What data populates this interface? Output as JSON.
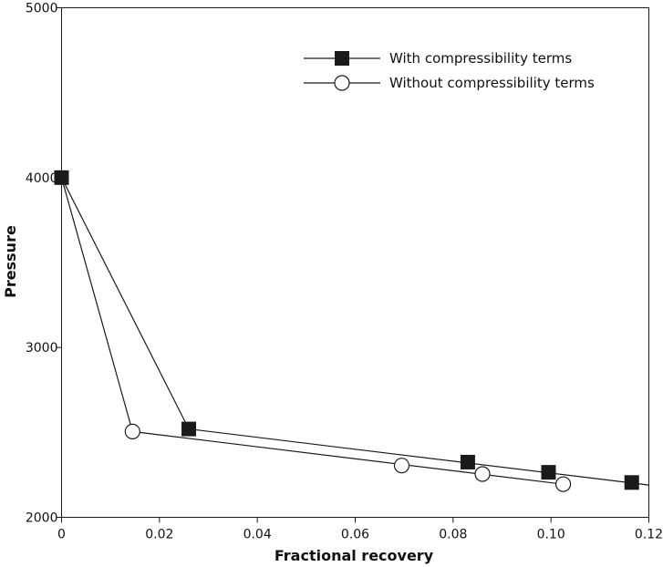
{
  "chart_data": {
    "type": "line",
    "title": "",
    "xlabel": "Fractional recovery",
    "ylabel": "Pressure",
    "xlim": [
      0,
      0.12
    ],
    "ylim": [
      2000,
      5000
    ],
    "xticks": [
      0,
      0.02,
      0.04,
      0.06,
      0.08,
      0.1,
      0.12
    ],
    "xtick_labels": [
      "0",
      "0.02",
      "0.04",
      "0.06",
      "0.08",
      "0.10",
      "0.12"
    ],
    "yticks": [
      2000,
      3000,
      4000,
      5000
    ],
    "ytick_labels": [
      "2000",
      "3000",
      "4000",
      "5000"
    ],
    "grid": false,
    "legend_position": "top-right",
    "series": [
      {
        "name": "With compressibility terms",
        "marker": "filled-square",
        "color": "#1a1a1a",
        "x": [
          0,
          0.026,
          0.083,
          0.0995,
          0.1165
        ],
        "y": [
          4000,
          2520,
          2325,
          2265,
          2205
        ],
        "line_x": [
          0,
          0.026,
          0.12
        ],
        "line_y": [
          4000,
          2520,
          2190
        ]
      },
      {
        "name": "Without compressibility terms",
        "marker": "open-circle",
        "color": "#1a1a1a",
        "x": [
          0.0145,
          0.0695,
          0.086,
          0.1025
        ],
        "y": [
          2505,
          2305,
          2255,
          2195
        ],
        "line_x": [
          0,
          0.0145,
          0.1025
        ],
        "line_y": [
          4000,
          2505,
          2195
        ]
      }
    ]
  }
}
